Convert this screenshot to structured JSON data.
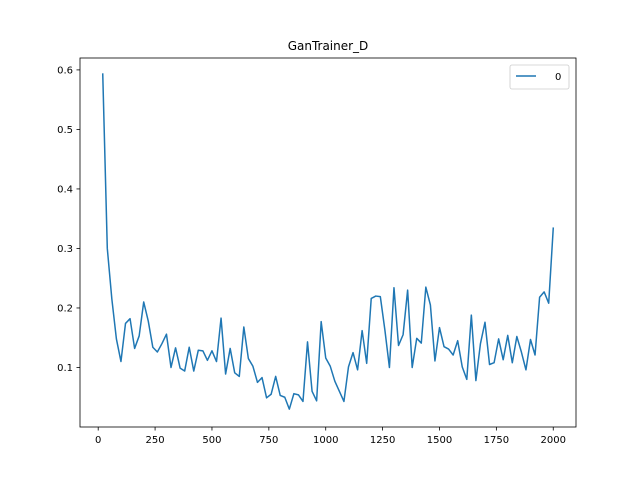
{
  "chart_data": {
    "type": "line",
    "title": "GanTrainer_D",
    "xlabel": "",
    "ylabel": "",
    "xlim": [
      -80,
      2100
    ],
    "ylim": [
      0.0,
      0.62
    ],
    "x_ticks": [
      0,
      250,
      500,
      750,
      1000,
      1250,
      1500,
      1750,
      2000
    ],
    "x_tick_labels": [
      "0",
      "250",
      "500",
      "750",
      "1000",
      "1250",
      "1500",
      "1750",
      "2000"
    ],
    "y_ticks": [
      0.1,
      0.2,
      0.3,
      0.4,
      0.5,
      0.6
    ],
    "y_tick_labels": [
      "0.1",
      "0.2",
      "0.3",
      "0.4",
      "0.5",
      "0.6"
    ],
    "grid": false,
    "legend": {
      "position": "top-right",
      "entries": [
        "0"
      ]
    },
    "color": "#1f77b4",
    "series": [
      {
        "name": "0",
        "x": [
          20,
          40,
          60,
          80,
          100,
          120,
          140,
          160,
          180,
          200,
          220,
          240,
          260,
          280,
          300,
          320,
          340,
          360,
          380,
          400,
          420,
          440,
          460,
          480,
          500,
          520,
          540,
          560,
          580,
          600,
          620,
          640,
          660,
          680,
          700,
          720,
          740,
          760,
          780,
          800,
          820,
          840,
          860,
          880,
          900,
          920,
          940,
          960,
          980,
          1000,
          1020,
          1040,
          1060,
          1080,
          1100,
          1120,
          1140,
          1160,
          1180,
          1200,
          1220,
          1240,
          1260,
          1280,
          1300,
          1320,
          1340,
          1360,
          1380,
          1400,
          1420,
          1440,
          1460,
          1480,
          1500,
          1520,
          1540,
          1560,
          1580,
          1600,
          1620,
          1640,
          1660,
          1680,
          1700,
          1720,
          1740,
          1760,
          1780,
          1800,
          1820,
          1840,
          1860,
          1880,
          1900,
          1920,
          1940,
          1960,
          1980,
          2000
        ],
        "values": [
          0.593,
          0.3,
          0.215,
          0.148,
          0.11,
          0.174,
          0.182,
          0.132,
          0.153,
          0.21,
          0.178,
          0.134,
          0.126,
          0.14,
          0.156,
          0.1,
          0.133,
          0.099,
          0.094,
          0.134,
          0.094,
          0.129,
          0.128,
          0.112,
          0.128,
          0.11,
          0.183,
          0.089,
          0.132,
          0.091,
          0.085,
          0.168,
          0.115,
          0.102,
          0.075,
          0.083,
          0.049,
          0.055,
          0.085,
          0.053,
          0.05,
          0.03,
          0.056,
          0.054,
          0.043,
          0.143,
          0.06,
          0.044,
          0.177,
          0.116,
          0.102,
          0.077,
          0.06,
          0.043,
          0.101,
          0.125,
          0.096,
          0.162,
          0.107,
          0.216,
          0.22,
          0.219,
          0.163,
          0.1,
          0.234,
          0.137,
          0.155,
          0.23,
          0.1,
          0.149,
          0.141,
          0.235,
          0.205,
          0.111,
          0.167,
          0.135,
          0.131,
          0.121,
          0.145,
          0.101,
          0.08,
          0.188,
          0.078,
          0.14,
          0.176,
          0.105,
          0.108,
          0.148,
          0.113,
          0.154,
          0.108,
          0.152,
          0.126,
          0.096,
          0.147,
          0.121,
          0.218,
          0.227,
          0.208,
          0.334
        ]
      }
    ]
  }
}
